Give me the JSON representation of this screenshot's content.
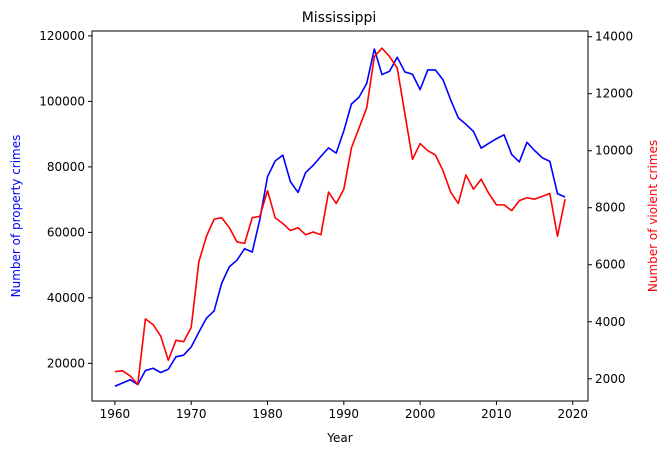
{
  "chart_data": {
    "type": "line",
    "title": "Mississippi",
    "xlabel": "Year",
    "ylabel_left": "Number of property crimes",
    "ylabel_right": "Number of violent crimes",
    "xlim": [
      1957,
      2022
    ],
    "ylim_left": [
      8500,
      121500
    ],
    "ylim_right": [
      1220,
      14200
    ],
    "x_ticks": [
      1960,
      1970,
      1980,
      1990,
      2000,
      2010,
      2020
    ],
    "y_ticks_left": [
      20000,
      40000,
      60000,
      80000,
      100000,
      120000
    ],
    "y_ticks_right": [
      2000,
      4000,
      6000,
      8000,
      10000,
      12000,
      14000
    ],
    "grid": false,
    "series": [
      {
        "axis": "left",
        "color": "#0000ff",
        "x": [
          1960,
          1961,
          1962,
          1963,
          1964,
          1965,
          1966,
          1967,
          1968,
          1969,
          1970,
          1971,
          1972,
          1973,
          1974,
          1975,
          1976,
          1977,
          1978,
          1979,
          1980,
          1981,
          1982,
          1983,
          1984,
          1985,
          1986,
          1987,
          1988,
          1989,
          1990,
          1991,
          1992,
          1993,
          1994,
          1995,
          1996,
          1997,
          1998,
          1999,
          2000,
          2001,
          2002,
          2003,
          2004,
          2005,
          2006,
          2007,
          2008,
          2009,
          2010,
          2011,
          2012,
          2013,
          2014,
          2015,
          2016,
          2017,
          2018,
          2019
        ],
        "values": [
          13000,
          14000,
          15000,
          13500,
          17800,
          18500,
          17200,
          18200,
          22000,
          22500,
          25000,
          29500,
          33800,
          36000,
          44500,
          49500,
          51500,
          55000,
          54000,
          64000,
          77000,
          81800,
          83600,
          75500,
          72200,
          78300,
          80500,
          83200,
          85800,
          84200,
          91000,
          99200,
          101300,
          105500,
          116000,
          108200,
          109200,
          113500,
          109000,
          108300,
          103600,
          109600,
          109600,
          106600,
          100500,
          95000,
          93000,
          90800,
          85700,
          87200,
          88600,
          89800,
          83800,
          81500,
          87500,
          85000,
          82800,
          81700,
          71800,
          70800
        ]
      },
      {
        "axis": "right",
        "color": "#ff0000",
        "x": [
          1960,
          1961,
          1962,
          1963,
          1964,
          1965,
          1966,
          1967,
          1968,
          1969,
          1970,
          1971,
          1972,
          1973,
          1974,
          1975,
          1976,
          1977,
          1978,
          1979,
          1980,
          1981,
          1982,
          1983,
          1984,
          1985,
          1986,
          1987,
          1988,
          1989,
          1990,
          1991,
          1992,
          1993,
          1994,
          1995,
          1996,
          1997,
          1998,
          1999,
          2000,
          2001,
          2002,
          2003,
          2004,
          2005,
          2006,
          2007,
          2008,
          2009,
          2010,
          2011,
          2012,
          2013,
          2014,
          2015,
          2016,
          2017,
          2018,
          2019
        ],
        "values": [
          2250,
          2280,
          2100,
          1800,
          4100,
          3900,
          3500,
          2650,
          3350,
          3300,
          3800,
          6100,
          7000,
          7600,
          7650,
          7300,
          6800,
          6750,
          7650,
          7700,
          8600,
          7650,
          7450,
          7200,
          7300,
          7050,
          7150,
          7050,
          8550,
          8150,
          8650,
          10100,
          10800,
          11500,
          13300,
          13600,
          13300,
          12900,
          11300,
          9700,
          10250,
          10000,
          9850,
          9300,
          8550,
          8150,
          9150,
          8650,
          9000,
          8500,
          8100,
          8100,
          7900,
          8250,
          8350,
          8300,
          8400,
          8500,
          7000,
          8300
        ]
      }
    ]
  }
}
